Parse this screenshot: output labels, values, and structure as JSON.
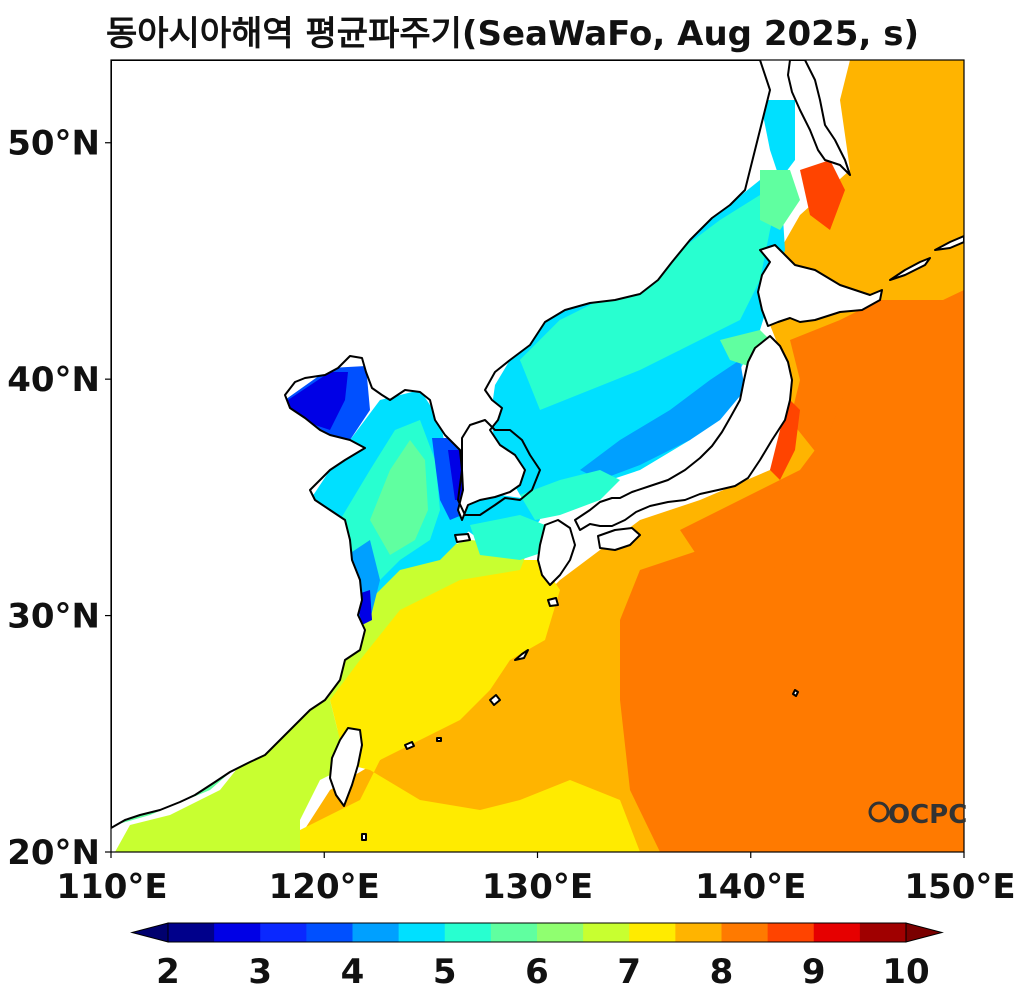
{
  "title": "동아시아해역 평균파주기(SeaWaFo, Aug 2025, s)",
  "map": {
    "lon_range": [
      110,
      150
    ],
    "lat_range": [
      20,
      53.5
    ],
    "x_ticks": [
      110,
      120,
      130,
      140,
      150
    ],
    "x_tick_labels": [
      "110°E",
      "120°E",
      "130°E",
      "140°E",
      "150°E"
    ],
    "y_ticks": [
      20,
      30,
      40,
      50
    ],
    "y_tick_labels": [
      "20°N",
      "30°N",
      "40°N",
      "50°N"
    ],
    "logo": "OCPC"
  },
  "colorbar": {
    "levels": [
      2,
      2.5,
      3,
      3.5,
      4,
      4.5,
      5,
      5.5,
      6,
      6.5,
      7,
      7.5,
      8,
      8.5,
      9,
      9.5,
      10
    ],
    "colors": [
      "#00008b",
      "#0000e6",
      "#0a28ff",
      "#0050ff",
      "#00a0ff",
      "#00e0ff",
      "#28ffd0",
      "#60ffa0",
      "#90ff70",
      "#c8ff30",
      "#ffeb00",
      "#ffb400",
      "#ff7a00",
      "#ff4400",
      "#e60000",
      "#a00000"
    ],
    "under_color": "#00006e",
    "over_color": "#7a0000",
    "tick_values": [
      2,
      3,
      4,
      5,
      6,
      7,
      8,
      9,
      10
    ],
    "tick_labels": [
      "2",
      "3",
      "4",
      "5",
      "6",
      "7",
      "8",
      "9",
      "10"
    ]
  },
  "field_colors": {
    "c2": "#0000e6",
    "c3": "#0050ff",
    "c4": "#00a0ff",
    "c5": "#00e0ff",
    "c6": "#28ffd0",
    "c7": "#60ffa0",
    "c8": "#c8ff30",
    "c9": "#ffeb00",
    "c10": "#ffb400",
    "c11": "#ff7a00",
    "c12": "#ff4400"
  }
}
